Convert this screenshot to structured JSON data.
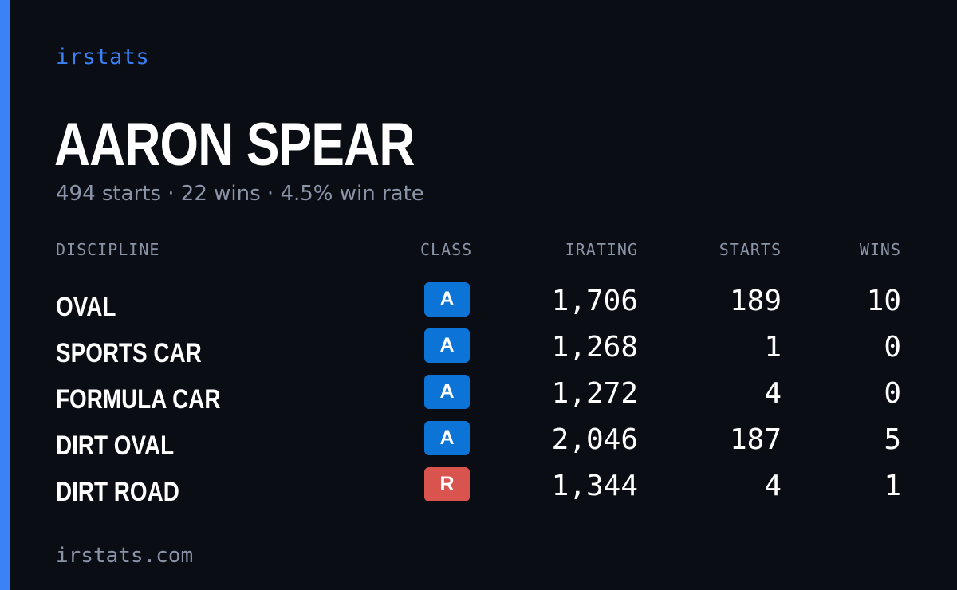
{
  "brand": "irstats",
  "driver": {
    "name": "AARON SPEAR"
  },
  "summary": "494 starts · 22 wins · 4.5% win rate",
  "table": {
    "headers": {
      "discipline": "DISCIPLINE",
      "class": "CLASS",
      "irating": "IRATING",
      "starts": "STARTS",
      "wins": "WINS"
    },
    "rows": [
      {
        "discipline": "OVAL",
        "class": "A",
        "class_color": "#0b74d6",
        "irating": "1,706",
        "starts": "189",
        "wins": "10"
      },
      {
        "discipline": "SPORTS CAR",
        "class": "A",
        "class_color": "#0b74d6",
        "irating": "1,268",
        "starts": "1",
        "wins": "0"
      },
      {
        "discipline": "FORMULA CAR",
        "class": "A",
        "class_color": "#0b74d6",
        "irating": "1,272",
        "starts": "4",
        "wins": "0"
      },
      {
        "discipline": "DIRT OVAL",
        "class": "A",
        "class_color": "#0b74d6",
        "irating": "2,046",
        "starts": "187",
        "wins": "5"
      },
      {
        "discipline": "DIRT ROAD",
        "class": "R",
        "class_color": "#d9534f",
        "irating": "1,344",
        "starts": "4",
        "wins": "1"
      }
    ]
  },
  "footer": "irstats.com",
  "colors": {
    "accent": "#3b82f6",
    "background": "#0a0d14",
    "muted": "#8b94a7"
  }
}
